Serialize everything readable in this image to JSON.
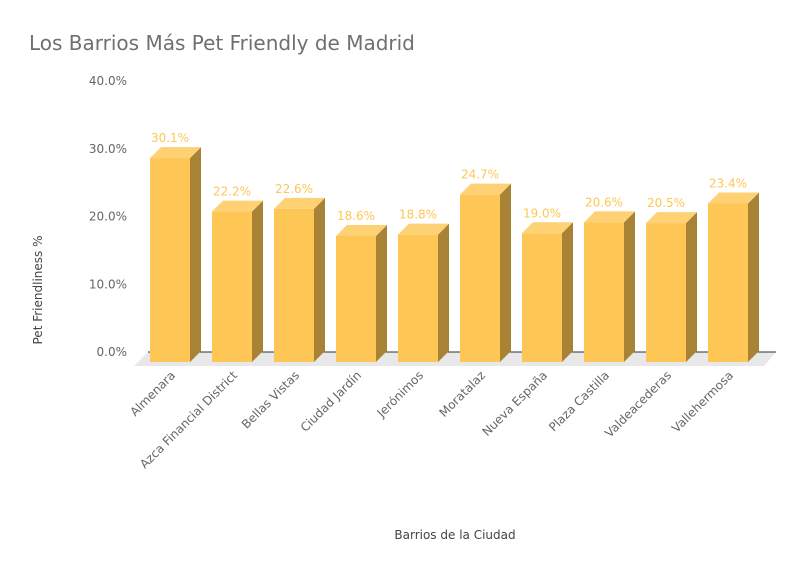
{
  "chart_data": {
    "type": "bar",
    "title": "Los Barrios Más Pet Friendly de Madrid",
    "xlabel": "Barrios de la Ciudad",
    "ylabel": "Pet Friendliness %",
    "ylim": [
      0,
      40
    ],
    "yticks": [
      "0.0%",
      "10.0%",
      "20.0%",
      "30.0%",
      "40.0%"
    ],
    "categories": [
      "Almenara",
      "Azca Financial District",
      "Bellas Vistas",
      "Ciudad Jardín",
      "Jerónimos",
      "Moratalaz",
      "Nueva España",
      "Plaza Castilla",
      "Valdeacederas",
      "Vallehermosa"
    ],
    "values": [
      30.1,
      22.2,
      22.6,
      18.6,
      18.8,
      24.7,
      19.0,
      20.6,
      20.5,
      23.4
    ],
    "data_labels": [
      "30.1%",
      "22.2%",
      "22.6%",
      "18.6%",
      "18.8%",
      "24.7%",
      "19.0%",
      "20.6%",
      "20.5%",
      "23.4%"
    ],
    "grid": false,
    "legend": "none",
    "colors": {
      "front": "#fec755",
      "top": "#fed174",
      "side": "#a88335",
      "label": "#fec755",
      "floor": "#e8e8e8"
    }
  }
}
